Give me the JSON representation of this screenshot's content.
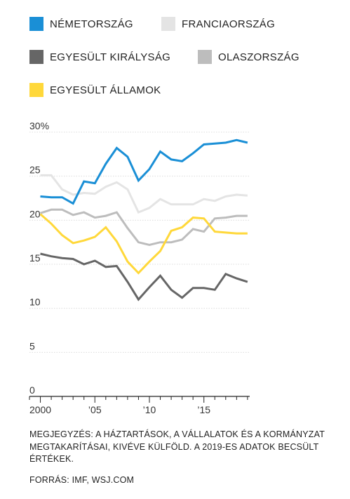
{
  "legend": [
    {
      "label": "NÉMETORSZÁG",
      "color": "#1a8fd6"
    },
    {
      "label": "FRANCIAORSZÁG",
      "color": "#e4e4e4"
    },
    {
      "label": "EGYESÜLT KIRÁLYSÁG",
      "color": "#666666"
    },
    {
      "label": "OLASZORSZÁG",
      "color": "#bdbdbd"
    },
    {
      "label": "EGYESÜLT ÁLLAMOK",
      "color": "#ffd83a"
    }
  ],
  "note": "MEGJEGYZÉS: A HÁZTARTÁSOK, A VÁLLALATOK ÉS A KORMÁNYZAT MEGTAKARÍTÁSAI, KIVÉVE KÜLFÖLD. A 2019-ES ADATOK BECSÜLT ÉRTÉKEK.",
  "source": "FORRÁS: IMF, WSJ.COM",
  "chart_data": {
    "type": "line",
    "title": "",
    "xlabel": "",
    "ylabel": "",
    "x": [
      2000,
      2001,
      2002,
      2003,
      2004,
      2005,
      2006,
      2007,
      2008,
      2009,
      2010,
      2011,
      2012,
      2013,
      2014,
      2015,
      2016,
      2017,
      2018,
      2019
    ],
    "x_ticks": [
      {
        "value": 2000,
        "label": "2000"
      },
      {
        "value": 2005,
        "label": "'05"
      },
      {
        "value": 2010,
        "label": "'10"
      },
      {
        "value": 2015,
        "label": "'15"
      }
    ],
    "xlim": [
      1999,
      2019.2
    ],
    "ylim": [
      0,
      30
    ],
    "y_ticks": [
      {
        "value": 30,
        "label": "30%"
      },
      {
        "value": 25,
        "label": "25"
      },
      {
        "value": 20,
        "label": "20"
      },
      {
        "value": 15,
        "label": "15"
      },
      {
        "value": 10,
        "label": "10"
      },
      {
        "value": 5,
        "label": "5"
      },
      {
        "value": 0,
        "label": "0"
      }
    ],
    "grid": true,
    "legend_position": "top",
    "series": [
      {
        "name": "FRANCIAORSZÁG",
        "color": "#e4e4e4",
        "values": [
          25.1,
          25.1,
          23.5,
          22.9,
          23.1,
          23.0,
          23.8,
          24.3,
          23.5,
          20.9,
          21.4,
          22.4,
          21.8,
          21.8,
          21.8,
          22.4,
          22.2,
          22.7,
          22.9,
          22.8
        ]
      },
      {
        "name": "OLASZORSZÁG",
        "color": "#bdbdbd",
        "values": [
          20.8,
          21.2,
          21.2,
          20.6,
          20.9,
          20.3,
          20.5,
          20.9,
          19.1,
          17.5,
          17.2,
          17.5,
          17.5,
          17.8,
          19.0,
          18.7,
          20.2,
          20.3,
          20.5,
          20.5
        ]
      },
      {
        "name": "EGYESÜLT KIRÁLYSÁG",
        "color": "#666666",
        "values": [
          16.2,
          15.9,
          15.7,
          15.6,
          15.0,
          15.4,
          14.7,
          14.8,
          13.0,
          11.0,
          12.4,
          13.7,
          12.1,
          11.2,
          12.3,
          12.3,
          12.1,
          13.9,
          13.4,
          13.0
        ]
      },
      {
        "name": "EGYESÜLT ÁLLAMOK",
        "color": "#ffd83a",
        "values": [
          20.7,
          19.6,
          18.3,
          17.4,
          17.7,
          18.1,
          19.2,
          17.6,
          15.3,
          14.0,
          15.3,
          16.5,
          18.8,
          19.2,
          20.3,
          20.2,
          18.7,
          18.6,
          18.5,
          18.5
        ]
      },
      {
        "name": "NÉMETORSZÁG",
        "color": "#1a8fd6",
        "values": [
          22.7,
          22.6,
          22.6,
          21.9,
          24.4,
          24.2,
          26.4,
          28.2,
          27.2,
          24.5,
          25.8,
          27.8,
          26.9,
          26.7,
          27.6,
          28.6,
          28.7,
          28.8,
          29.1,
          28.8
        ]
      }
    ]
  }
}
